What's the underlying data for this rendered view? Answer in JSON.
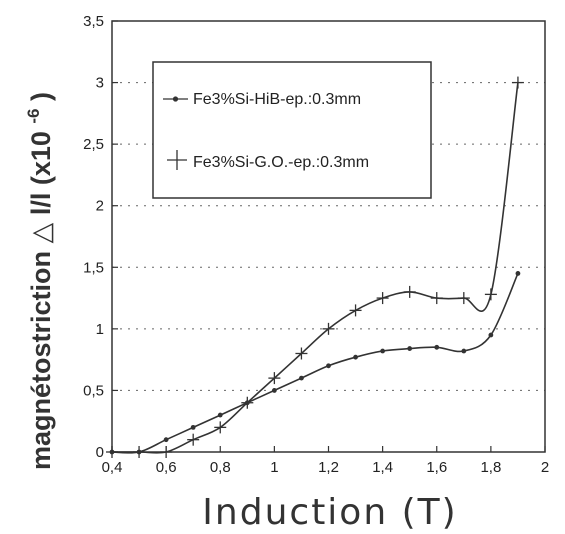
{
  "chart_data": {
    "type": "line",
    "title": "",
    "xlabel": "Induction (T)",
    "ylabel_prefix": "magnétostriction",
    "ylabel_symbol": "△",
    "ylabel_suffix": "l/l  (x10",
    "ylabel_exponent": "-6",
    "ylabel_close": ")",
    "xlim": [
      0.4,
      2
    ],
    "ylim": [
      0,
      3.5
    ],
    "x_ticks": [
      "0,4",
      "0,6",
      "0,8",
      "1",
      "1,2",
      "1,4",
      "1,6",
      "1,8",
      "2"
    ],
    "y_ticks": [
      "0",
      "0,5",
      "1",
      "1,5",
      "2",
      "2,5",
      "3",
      "3,5"
    ],
    "grid": "horizontal-dotted",
    "legend_position": "top-left",
    "series": [
      {
        "name": "Fe3%Si-HiB-ep.:0.3mm",
        "marker": "dot",
        "x": [
          0.4,
          0.5,
          0.6,
          0.7,
          0.8,
          0.9,
          1.0,
          1.1,
          1.2,
          1.3,
          1.4,
          1.5,
          1.6,
          1.7,
          1.8,
          1.9
        ],
        "y": [
          0,
          0,
          0.1,
          0.2,
          0.3,
          0.4,
          0.5,
          0.6,
          0.7,
          0.77,
          0.82,
          0.84,
          0.85,
          0.82,
          0.95,
          1.45
        ]
      },
      {
        "name": "Fe3%Si-G.O.-ep.:0.3mm",
        "marker": "plus",
        "x": [
          0.4,
          0.5,
          0.6,
          0.7,
          0.8,
          0.9,
          1.0,
          1.1,
          1.2,
          1.3,
          1.4,
          1.5,
          1.6,
          1.7,
          1.8,
          1.9
        ],
        "y": [
          0,
          0,
          0,
          0.1,
          0.2,
          0.4,
          0.6,
          0.8,
          1.0,
          1.15,
          1.25,
          1.3,
          1.25,
          1.25,
          1.28,
          3.0
        ]
      }
    ]
  }
}
